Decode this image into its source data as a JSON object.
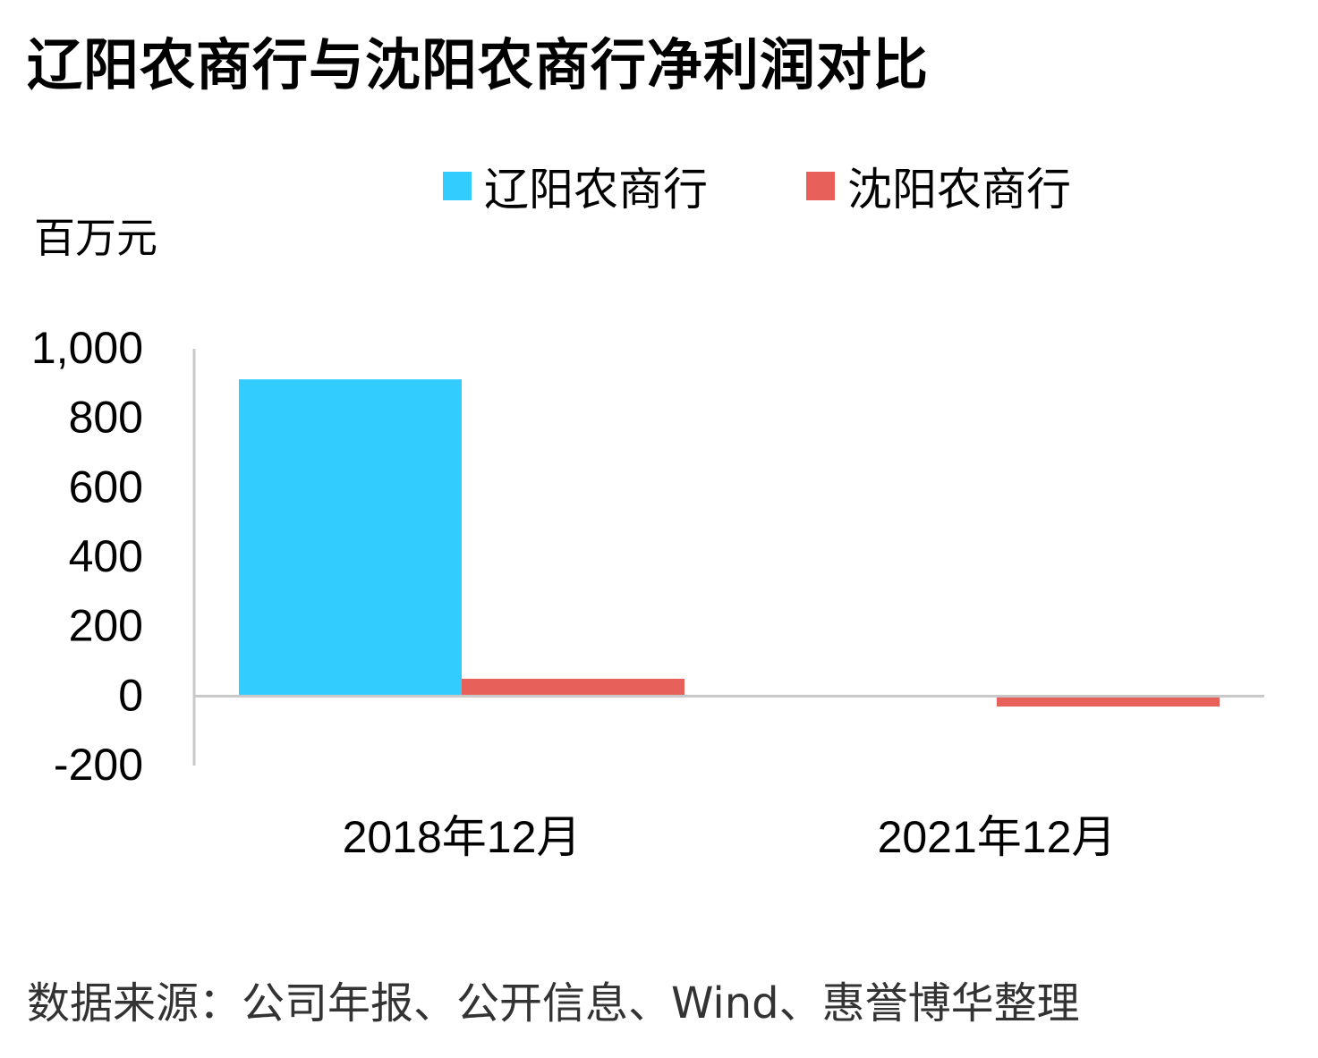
{
  "title": "辽阳农商行与沈阳农商行净利润对比",
  "unit_label": "百万元",
  "source": "数据来源：公司年报、公开信息、Wind、惠誉博华整理",
  "chart_data": {
    "type": "bar",
    "title": "辽阳农商行与沈阳农商行净利润对比",
    "ylabel": "百万元",
    "categories": [
      "2018年12月",
      "2021年12月"
    ],
    "series": [
      {
        "name": "辽阳农商行",
        "color": "#33CCFF",
        "values": [
          912,
          0
        ]
      },
      {
        "name": "沈阳农商行",
        "color": "#E8605A",
        "values": [
          50,
          -30
        ]
      }
    ],
    "ylim": [
      -200,
      1000
    ],
    "yticks": [
      "1,000",
      "800",
      "600",
      "400",
      "200",
      "0",
      "-200"
    ],
    "ytick_values": [
      1000,
      800,
      600,
      400,
      200,
      0,
      -200
    ],
    "grid": false,
    "legend_position": "top"
  }
}
